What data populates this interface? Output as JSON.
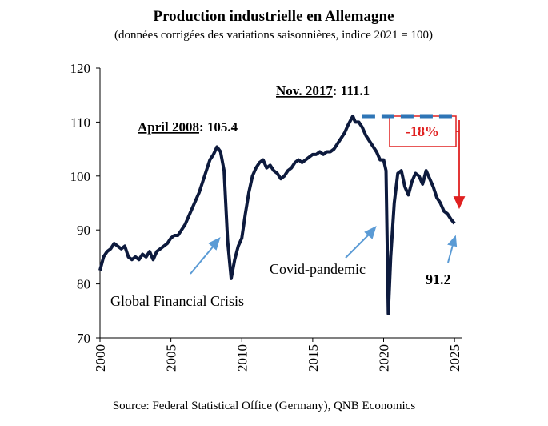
{
  "chart_data": {
    "type": "line",
    "title": "Production industrielle en Allemagne",
    "subtitle": "(données corrigées des variations saisonnières, indice 2021 = 100)",
    "source": "Source: Federal Statistical Office (Germany), QNB Economics",
    "xlim": [
      2000,
      2025.5
    ],
    "xticks": [
      2000,
      2005,
      2010,
      2015,
      2020,
      2025
    ],
    "ylim": [
      70,
      120
    ],
    "yticks": [
      70,
      80,
      90,
      100,
      110,
      120
    ],
    "x": [
      2000.0,
      2000.25,
      2000.5,
      2000.75,
      2001.0,
      2001.25,
      2001.5,
      2001.75,
      2002.0,
      2002.25,
      2002.5,
      2002.75,
      2003.0,
      2003.25,
      2003.5,
      2003.75,
      2004.0,
      2004.25,
      2004.5,
      2004.75,
      2005.0,
      2005.25,
      2005.5,
      2005.75,
      2006.0,
      2006.25,
      2006.5,
      2006.75,
      2007.0,
      2007.25,
      2007.5,
      2007.75,
      2008.0,
      2008.25,
      2008.5,
      2008.75,
      2009.0,
      2009.25,
      2009.5,
      2009.75,
      2010.0,
      2010.25,
      2010.5,
      2010.75,
      2011.0,
      2011.25,
      2011.5,
      2011.75,
      2012.0,
      2012.25,
      2012.5,
      2012.75,
      2013.0,
      2013.25,
      2013.5,
      2013.75,
      2014.0,
      2014.25,
      2014.5,
      2014.75,
      2015.0,
      2015.25,
      2015.5,
      2015.75,
      2016.0,
      2016.25,
      2016.5,
      2016.75,
      2017.0,
      2017.25,
      2017.5,
      2017.83,
      2018.0,
      2018.25,
      2018.5,
      2018.75,
      2019.0,
      2019.25,
      2019.5,
      2019.75,
      2020.0,
      2020.17,
      2020.33,
      2020.5,
      2020.75,
      2021.0,
      2021.25,
      2021.5,
      2021.75,
      2022.0,
      2022.25,
      2022.5,
      2022.75,
      2023.0,
      2023.25,
      2023.5,
      2023.75,
      2024.0,
      2024.25,
      2024.5,
      2024.75,
      2025.0
    ],
    "series": [
      {
        "name": "Production industrielle",
        "color": "#0d1a3d",
        "values": [
          82.5,
          85,
          86,
          86.5,
          87.5,
          87,
          86.5,
          87,
          85,
          84.5,
          85,
          84.5,
          85.5,
          85,
          86,
          84.5,
          86,
          86.5,
          87,
          87.5,
          88.5,
          89,
          89,
          90,
          91,
          92.5,
          94,
          95.5,
          97,
          99,
          101,
          103,
          104,
          105.4,
          104.5,
          101,
          88,
          81,
          84.5,
          87,
          88.5,
          93,
          97,
          100,
          101.5,
          102.5,
          103,
          101.5,
          102,
          101,
          100.5,
          99.5,
          100,
          101,
          101.5,
          102.5,
          103,
          102.5,
          103,
          103.5,
          104,
          104,
          104.5,
          104,
          104.5,
          104.5,
          105,
          106,
          107,
          108,
          109.5,
          111.1,
          110,
          110,
          109,
          107.5,
          106.5,
          105.5,
          104.5,
          103,
          103,
          101,
          74.5,
          85,
          95,
          100.5,
          101,
          98,
          96.5,
          99,
          100.5,
          100,
          98.5,
          101,
          99.5,
          98,
          96,
          95,
          93.5,
          93,
          92,
          91.2
        ]
      }
    ],
    "reference_line": {
      "value": 111.1,
      "x": [
        2018.5,
        2025.2
      ],
      "color": "#2e75b6"
    },
    "peak_annotations": [
      {
        "date": "April 2008",
        "text": ": 105.4"
      },
      {
        "date": "Nov. 2017",
        "text": ": 111.1"
      }
    ],
    "change_label": "-18%",
    "annotations": [
      "Global Financial Crisis",
      "Covid-pandemic",
      "91.2"
    ],
    "grid": false
  }
}
